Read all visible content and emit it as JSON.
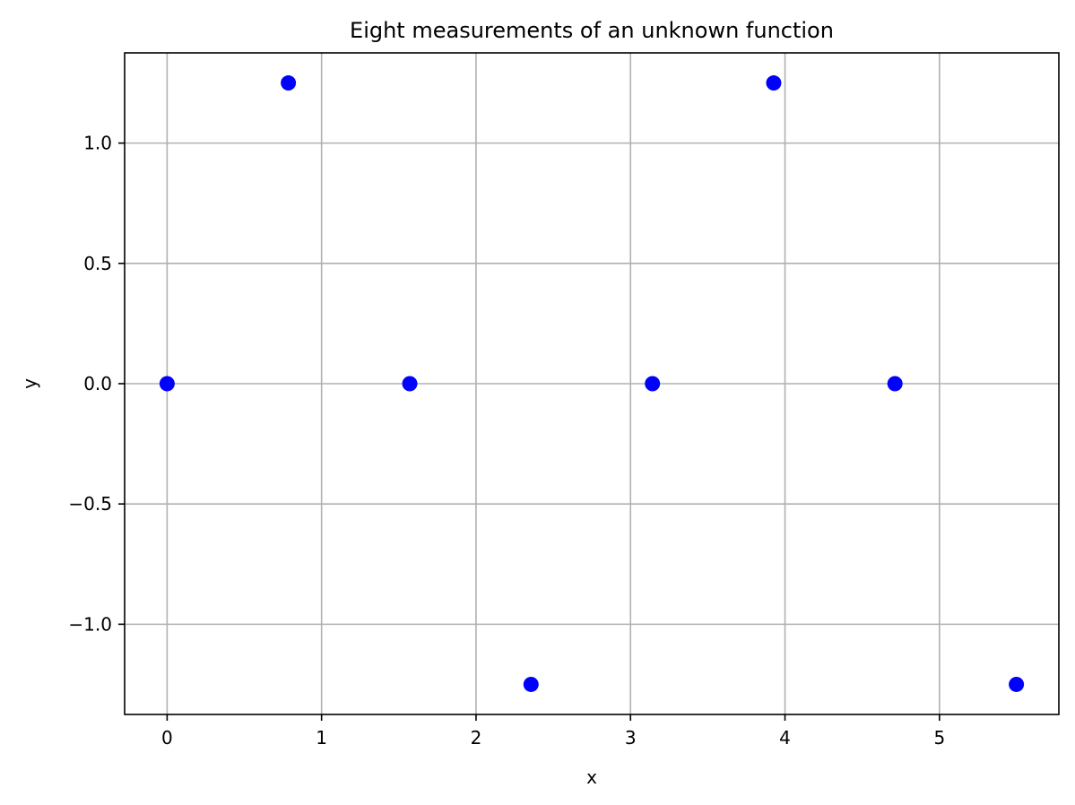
{
  "chart_data": {
    "type": "scatter",
    "title": "Eight measurements of an unknown function",
    "xlabel": "x",
    "ylabel": "y",
    "xlim": [
      -0.275,
      5.773
    ],
    "ylim": [
      -1.375,
      1.375
    ],
    "xticks": [
      0,
      1,
      2,
      3,
      4,
      5
    ],
    "xtick_labels": [
      "0",
      "1",
      "2",
      "3",
      "4",
      "5"
    ],
    "yticks": [
      -1.0,
      -0.5,
      0.0,
      0.5,
      1.0
    ],
    "ytick_labels": [
      "−1.0",
      "−0.5",
      "0.0",
      "0.5",
      "1.0"
    ],
    "grid": true,
    "series": [
      {
        "x": [
          0.0,
          0.785,
          1.571,
          2.356,
          3.142,
          3.927,
          4.712,
          5.498
        ],
        "y": [
          0.0,
          1.25,
          0.0,
          -1.25,
          0.0,
          1.25,
          0.0,
          -1.25
        ],
        "color": "#0000ff"
      }
    ]
  }
}
